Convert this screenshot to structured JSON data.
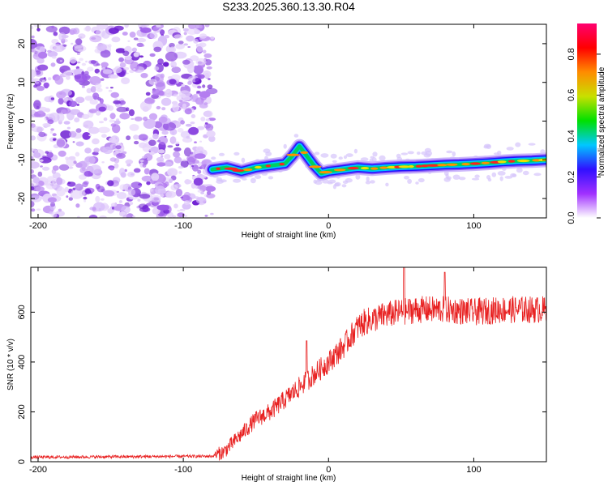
{
  "figure_title": "S233.2025.360.13.30.R04",
  "chart_data": [
    {
      "type": "heatmap",
      "title": "S233.2025.360.13.30.R04",
      "xlabel": "Height of straight line (km)",
      "ylabel": "Frequency (Hz)",
      "xlim": [
        -205,
        150
      ],
      "ylim": [
        -25,
        25
      ],
      "x_ticks": [
        -200,
        -100,
        0,
        100
      ],
      "y_ticks": [
        -20,
        -10,
        0,
        10,
        20
      ],
      "noise_region_x": [
        -205,
        -80
      ],
      "ridge": {
        "x": [
          -80,
          -70,
          -60,
          -50,
          -40,
          -30,
          -25,
          -20,
          -15,
          -10,
          -5,
          0,
          10,
          20,
          30,
          40,
          50,
          60,
          70,
          80,
          90,
          100,
          110,
          120,
          130,
          140,
          150
        ],
        "y": [
          -12.5,
          -12,
          -13,
          -12,
          -11.5,
          -11,
          -9,
          -6.5,
          -9,
          -11.5,
          -13.5,
          -13,
          -12.5,
          -12,
          -12.3,
          -12,
          -11.8,
          -11.7,
          -11.5,
          -11.3,
          -11.2,
          -11,
          -10.8,
          -10.5,
          -10.3,
          -10.2,
          -10
        ]
      },
      "colorbar": {
        "label": "Normalized spectral amplitude",
        "range": [
          0.0,
          0.95
        ],
        "ticks": [
          "0.0",
          "0.2",
          "0.4",
          "0.6",
          "0.8"
        ],
        "colors": [
          "#ffffff",
          "#a030ff",
          "#3010ff",
          "#00c8ff",
          "#00e000",
          "#c8e000",
          "#ff8c00",
          "#ff0000",
          "#ff0070"
        ]
      }
    },
    {
      "type": "line",
      "xlabel": "Height of straight line (km)",
      "ylabel": "SNR (10 * v/v)",
      "xlim": [
        -205,
        150
      ],
      "ylim": [
        0,
        780
      ],
      "x_ticks": [
        -200,
        -100,
        0,
        100
      ],
      "y_ticks": [
        0,
        200,
        400,
        600
      ],
      "series": [
        {
          "name": "SNR",
          "color": "#e82020",
          "trend": {
            "x": [
              -205,
              -80,
              -72,
              -60,
              -50,
              -40,
              -30,
              -20,
              -10,
              0,
              10,
              20,
              25,
              40,
              60,
              80,
              100,
              120,
              150
            ],
            "y": [
              18,
              22,
              40,
              110,
              170,
              200,
              250,
              300,
              350,
              400,
              460,
              540,
              560,
              590,
              610,
              610,
              600,
              610,
              610
            ]
          },
          "peaks": [
            {
              "x": -15,
              "y": 485
            },
            {
              "x": 52,
              "y": 780
            },
            {
              "x": 80,
              "y": 760
            }
          ]
        }
      ]
    }
  ]
}
